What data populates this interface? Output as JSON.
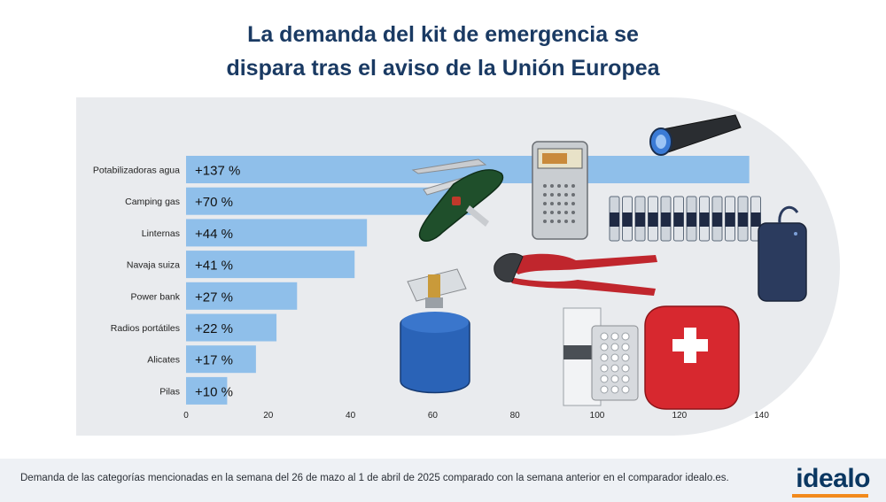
{
  "title": {
    "line1": "La demanda del kit de emergencia se",
    "line2": "dispara tras el aviso de la Unión Europea"
  },
  "footer": {
    "note": "Demanda de las categorías mencionadas en la semana del 26 de mazo al 1 de abril de 2025 comparado con la semana anterior en el comparador idealo.es.",
    "logo": "idealo"
  },
  "colors": {
    "bar": "#8fbfea",
    "title": "#1a3a63",
    "panel": "#e9ebee",
    "logo": "#0a3761",
    "logo_accent": "#f28a1c"
  },
  "chart_data": {
    "type": "bar",
    "orientation": "horizontal",
    "categories": [
      "Potabilizadoras agua",
      "Camping gas",
      "Linternas",
      "Navaja suiza",
      "Power bank",
      "Radios portátiles",
      "Alicates",
      "Pilas"
    ],
    "values": [
      137,
      70,
      44,
      41,
      27,
      22,
      17,
      10
    ],
    "value_labels": [
      "+137 %",
      "+70 %",
      "+44 %",
      "+41 %",
      "+27 %",
      "+22 %",
      "+17 %",
      "+10 %"
    ],
    "xticks": [
      0,
      20,
      40,
      60,
      80,
      100,
      120,
      140
    ],
    "xlim": [
      0,
      140
    ],
    "grid": false,
    "legend": "none"
  },
  "illustrations": {
    "items": [
      "pocket-knife-icon",
      "radio-icon",
      "flashlight-icon",
      "batteries-icon",
      "power-bank-icon",
      "pliers-icon",
      "camping-stove-icon",
      "water-tablets-icon",
      "first-aid-kit-icon"
    ]
  }
}
